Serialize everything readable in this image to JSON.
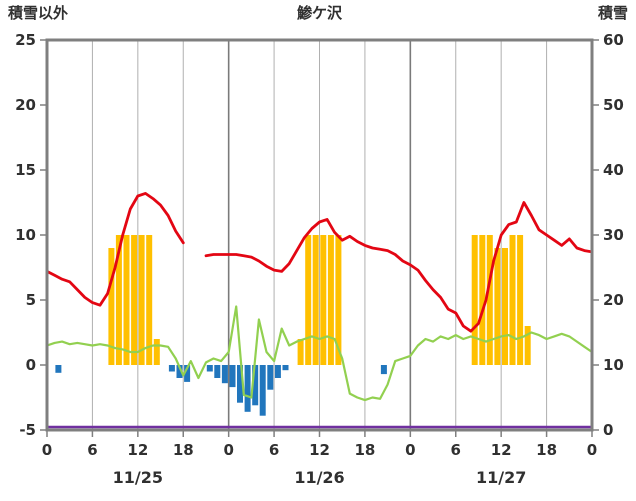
{
  "header": {
    "left_label": "積雪以外",
    "center_label": "鯵ケ沢",
    "right_label": "積雪"
  },
  "chart_data": {
    "type": "combo",
    "title": "鯵ケ沢",
    "left_axis": {
      "label": "積雪以外",
      "min": -5,
      "max": 25,
      "ticks": [
        25,
        20,
        15,
        10,
        5,
        0,
        -5
      ]
    },
    "right_axis": {
      "label": "積雪",
      "min": 0,
      "max": 60,
      "ticks": [
        60,
        50,
        40,
        30,
        20,
        10,
        0
      ]
    },
    "x_axis": {
      "hours_total": 72,
      "tick_step": 6,
      "tick_labels": [
        "0",
        "6",
        "12",
        "18",
        "0",
        "6",
        "12",
        "18",
        "0",
        "6",
        "12",
        "18",
        "0"
      ],
      "day_labels": [
        "11/25",
        "11/26",
        "11/27"
      ]
    },
    "grid": {
      "vertical": true,
      "horizontal": false,
      "day_separator_hours": [
        24,
        48
      ]
    },
    "series": [
      {
        "name": "sunshine",
        "type": "bar",
        "axis": "left",
        "color": "#ffc000",
        "values": [
          0,
          0,
          0,
          0,
          0,
          0,
          0,
          0,
          9,
          10,
          10,
          10,
          10,
          10,
          2,
          0,
          0,
          0,
          0,
          0,
          0,
          0,
          0,
          0,
          0,
          0,
          0,
          0,
          0,
          0,
          0,
          0,
          0,
          2,
          10,
          10,
          10,
          10,
          10,
          0,
          0,
          0,
          0,
          0,
          0,
          0,
          0,
          0,
          0,
          0,
          0,
          0,
          0,
          0,
          0,
          0,
          10,
          10,
          10,
          9,
          9,
          10,
          10,
          3,
          0,
          0,
          0,
          0,
          0,
          0,
          0,
          0
        ]
      },
      {
        "name": "precipitation",
        "type": "bar",
        "axis": "left",
        "color": "#2176bd",
        "values": [
          0,
          -0.6,
          0,
          0,
          0,
          0,
          0,
          0,
          0,
          0,
          0,
          0,
          0,
          0,
          0,
          0,
          -0.5,
          -1.0,
          -1.3,
          0,
          0,
          -0.5,
          -1.0,
          -1.4,
          -1.7,
          -2.9,
          -3.6,
          -3.1,
          -3.9,
          -1.9,
          -1.0,
          -0.4,
          0,
          0,
          0,
          0,
          0,
          0,
          0,
          0,
          0,
          0,
          0,
          0,
          -0.7,
          0,
          0,
          0,
          0,
          0,
          0,
          0,
          0,
          0,
          0,
          0,
          0,
          0,
          0,
          0,
          0,
          0,
          0,
          0,
          0,
          0,
          0,
          0,
          0,
          0,
          0,
          0
        ]
      },
      {
        "name": "wind",
        "type": "line",
        "axis": "left",
        "color": "#92d050",
        "width": 2.2,
        "values": [
          1.5,
          1.7,
          1.8,
          1.6,
          1.7,
          1.6,
          1.5,
          1.6,
          1.5,
          1.3,
          1.2,
          1.0,
          1.0,
          1.3,
          1.5,
          1.5,
          1.4,
          0.5,
          -0.8,
          0.3,
          -1.0,
          0.2,
          0.5,
          0.3,
          1.0,
          4.5,
          -2.3,
          -2.5,
          3.5,
          1.0,
          0.3,
          2.8,
          1.5,
          1.8,
          2.0,
          2.2,
          2.0,
          2.2,
          2.0,
          0.5,
          -2.2,
          -2.5,
          -2.7,
          -2.5,
          -2.6,
          -1.5,
          0.3,
          0.5,
          0.7,
          1.5,
          2.0,
          1.8,
          2.2,
          2.0,
          2.3,
          2.0,
          2.2,
          2.0,
          1.8,
          2.0,
          2.2,
          2.3,
          2.0,
          2.2,
          2.5,
          2.3,
          2.0,
          2.2,
          2.4,
          2.2,
          1.8,
          1.4,
          1.0
        ]
      },
      {
        "name": "temperature",
        "type": "line",
        "axis": "left",
        "color": "#e30613",
        "width": 2.8,
        "values": [
          7.2,
          6.9,
          6.6,
          6.4,
          5.8,
          5.2,
          4.8,
          4.6,
          5.5,
          7.5,
          10.0,
          12.0,
          13.0,
          13.2,
          12.8,
          12.3,
          11.5,
          10.3,
          9.4,
          null,
          null,
          8.4,
          8.5,
          8.5,
          8.5,
          8.5,
          8.4,
          8.3,
          8.0,
          7.6,
          7.3,
          7.2,
          7.8,
          8.8,
          9.8,
          10.5,
          11.0,
          11.2,
          10.2,
          9.6,
          9.9,
          9.5,
          9.2,
          9.0,
          8.9,
          8.8,
          8.5,
          8.0,
          7.7,
          7.3,
          6.5,
          5.8,
          5.2,
          4.3,
          4.0,
          3.0,
          2.6,
          3.2,
          5.0,
          8.0,
          10.0,
          10.8,
          11.0,
          12.5,
          11.5,
          10.4,
          10.0,
          9.6,
          9.2,
          9.7,
          9.0,
          8.8,
          8.7
        ]
      },
      {
        "name": "snow_depth",
        "type": "line",
        "axis": "right",
        "color": "#7030a0",
        "width": 2.5,
        "x": [
          0,
          72
        ],
        "values": [
          0,
          0
        ]
      }
    ]
  }
}
